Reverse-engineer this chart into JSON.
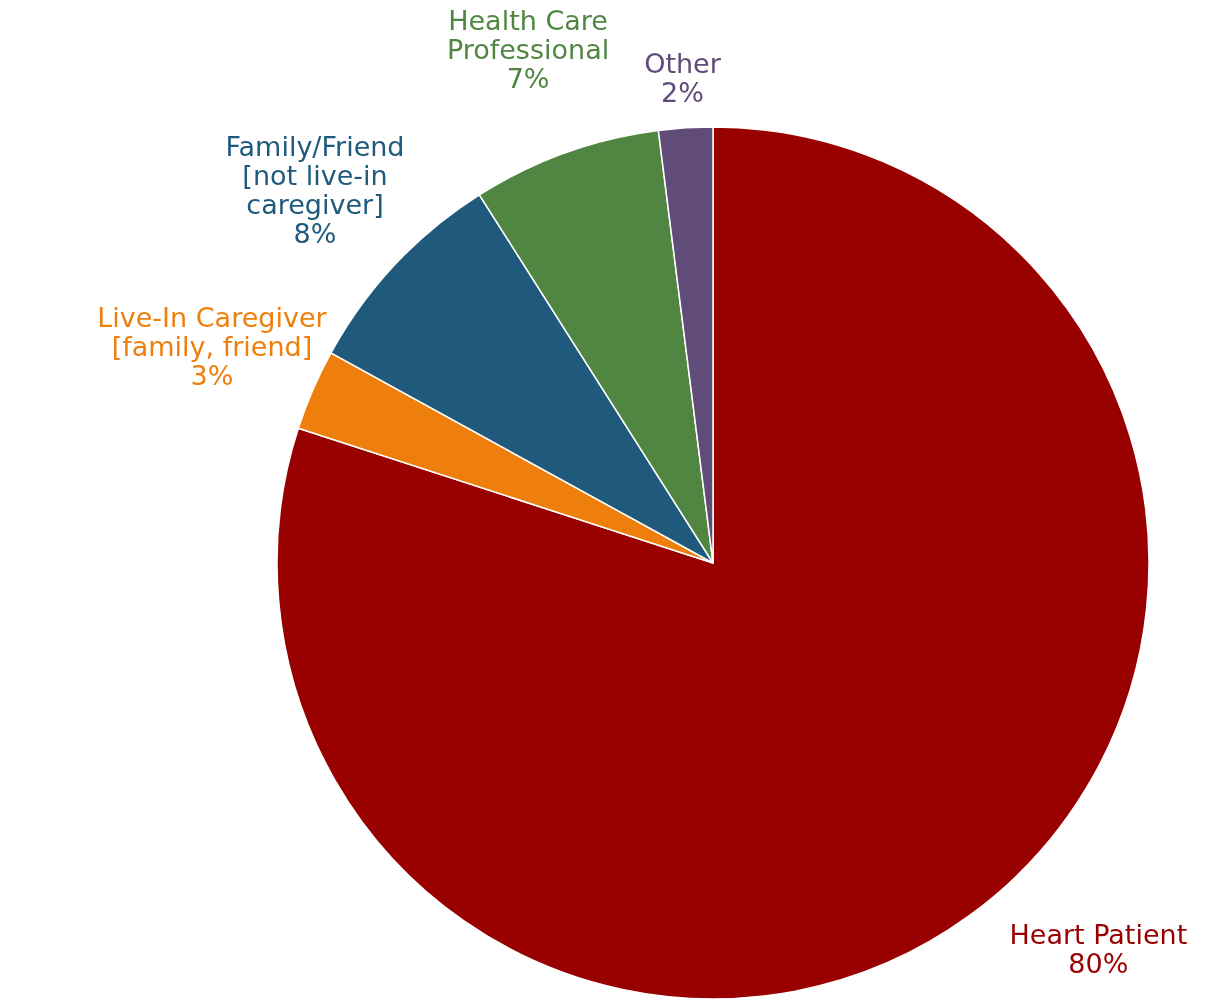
{
  "chart_data": {
    "type": "pie",
    "categories": [
      "Heart Patient",
      "Live-In Caregiver\n[family, friend]",
      "Family/Friend\n[not live-in\ncaregiver]",
      "Health Care\nProfessional",
      "Other"
    ],
    "values": [
      80,
      3,
      8,
      7,
      2
    ],
    "colors": [
      "#990000",
      "#ef7f0c",
      "#1f5a7c",
      "#508642",
      "#614b79"
    ],
    "value_labels": [
      "80%",
      "3%",
      "8%",
      "7%",
      "2%"
    ]
  }
}
